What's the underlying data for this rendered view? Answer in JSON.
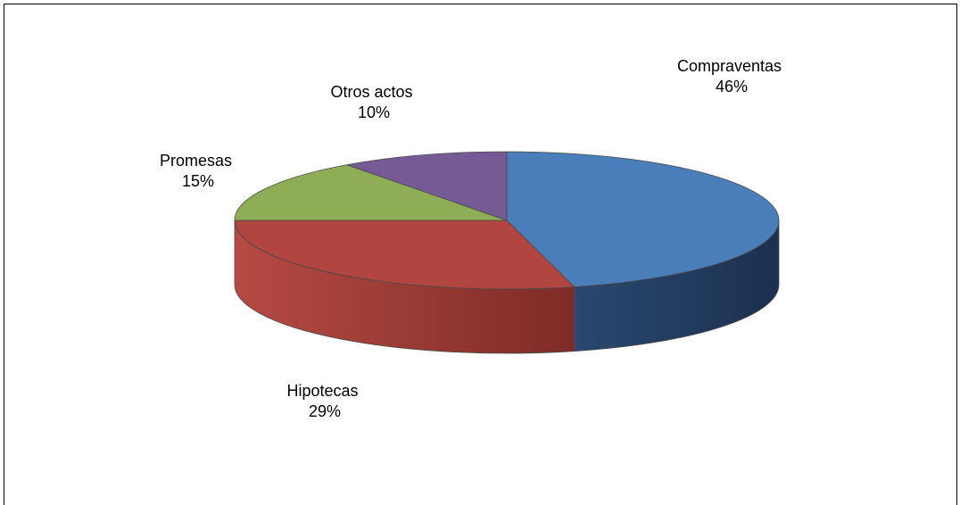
{
  "chart_data": {
    "type": "pie",
    "style": "3d",
    "slices": [
      {
        "label": "Compraventas",
        "value": 46,
        "value_label": "46%",
        "color": "#4A7EBB",
        "side_color": "#1F3552"
      },
      {
        "label": "Hipotecas",
        "value": 29,
        "value_label": "29%",
        "color": "#B0463F",
        "side_color": "#A0403A"
      },
      {
        "label": "Promesas",
        "value": 15,
        "value_label": "15%",
        "color": "#8FAD54",
        "side_color": "#6F8A40"
      },
      {
        "label": "Otros actos",
        "value": 10,
        "value_label": "10%",
        "color": "#755A96",
        "side_color": "#5A4575"
      }
    ]
  }
}
